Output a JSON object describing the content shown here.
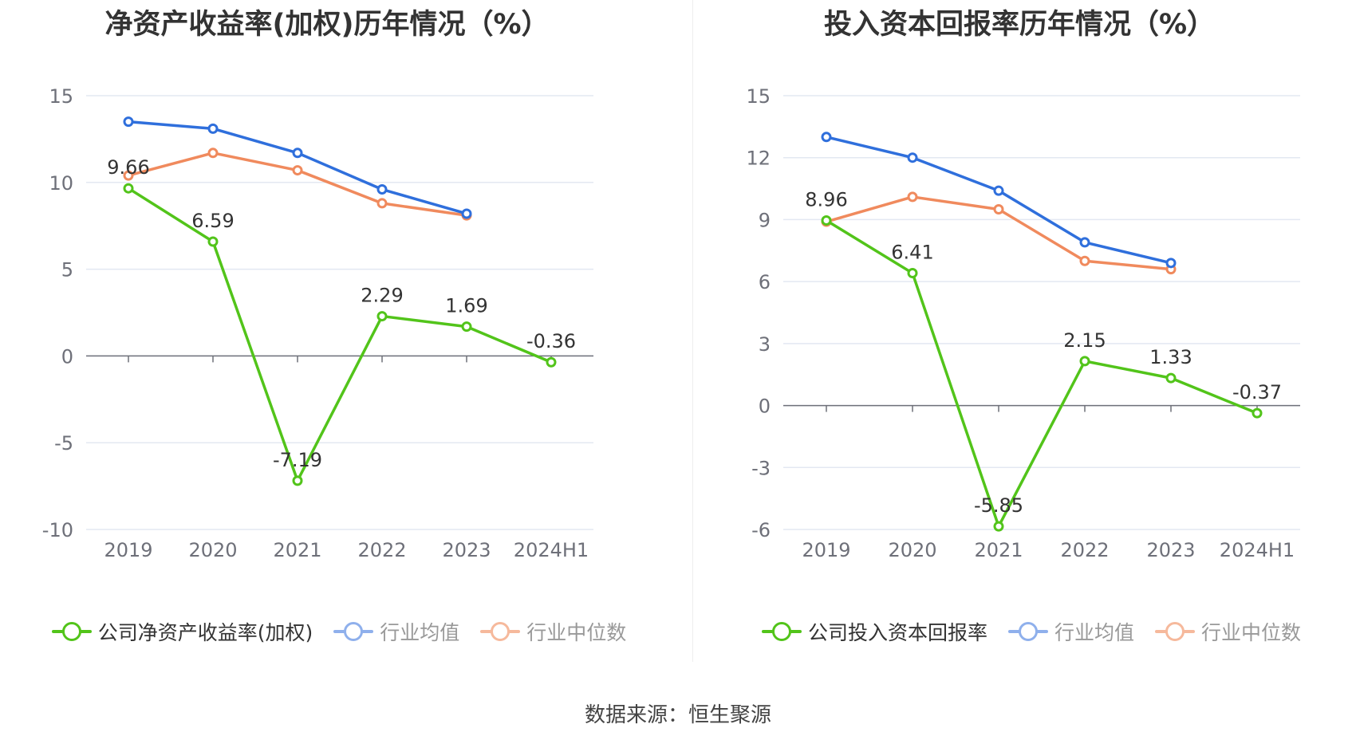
{
  "source_text": "数据来源：恒生聚源",
  "chart_data": [
    {
      "type": "line",
      "title": "净资产收益率(加权)历年情况（%）",
      "categories": [
        "2019",
        "2020",
        "2021",
        "2022",
        "2023",
        "2024H1"
      ],
      "ylim": [
        -10,
        15
      ],
      "yticks": [
        15,
        10,
        5,
        0,
        -5,
        -10
      ],
      "grid": true,
      "legend_position": "bottom",
      "series": [
        {
          "name": "公司净资产收益率(加权)",
          "color": "#52c41a",
          "values": [
            9.66,
            6.59,
            -7.19,
            2.29,
            1.69,
            -0.36
          ],
          "labels": [
            "9.66",
            "6.59",
            "-7.19",
            "2.29",
            "1.69",
            "-0.36"
          ]
        },
        {
          "name": "行业均值",
          "color": "#2f6fdc",
          "values": [
            13.5,
            13.1,
            11.7,
            9.6,
            8.2,
            null
          ]
        },
        {
          "name": "行业中位数",
          "color": "#f08a5d",
          "values": [
            10.4,
            11.7,
            10.7,
            8.8,
            8.1,
            null
          ]
        }
      ]
    },
    {
      "type": "line",
      "title": "投入资本回报率历年情况（%）",
      "categories": [
        "2019",
        "2020",
        "2021",
        "2022",
        "2023",
        "2024H1"
      ],
      "ylim": [
        -6,
        15
      ],
      "yticks": [
        15,
        12,
        9,
        6,
        3,
        0,
        -3,
        -6
      ],
      "grid": true,
      "legend_position": "bottom",
      "series": [
        {
          "name": "公司投入资本回报率",
          "color": "#52c41a",
          "values": [
            8.96,
            6.41,
            -5.85,
            2.15,
            1.33,
            -0.37
          ],
          "labels": [
            "8.96",
            "6.41",
            "-5.85",
            "2.15",
            "1.33",
            "-0.37"
          ]
        },
        {
          "name": "行业均值",
          "color": "#2f6fdc",
          "values": [
            13.0,
            12.0,
            10.4,
            7.9,
            6.9,
            null
          ]
        },
        {
          "name": "行业中位数",
          "color": "#f08a5d",
          "values": [
            8.9,
            10.1,
            9.5,
            7.0,
            6.6,
            null
          ]
        }
      ]
    }
  ]
}
